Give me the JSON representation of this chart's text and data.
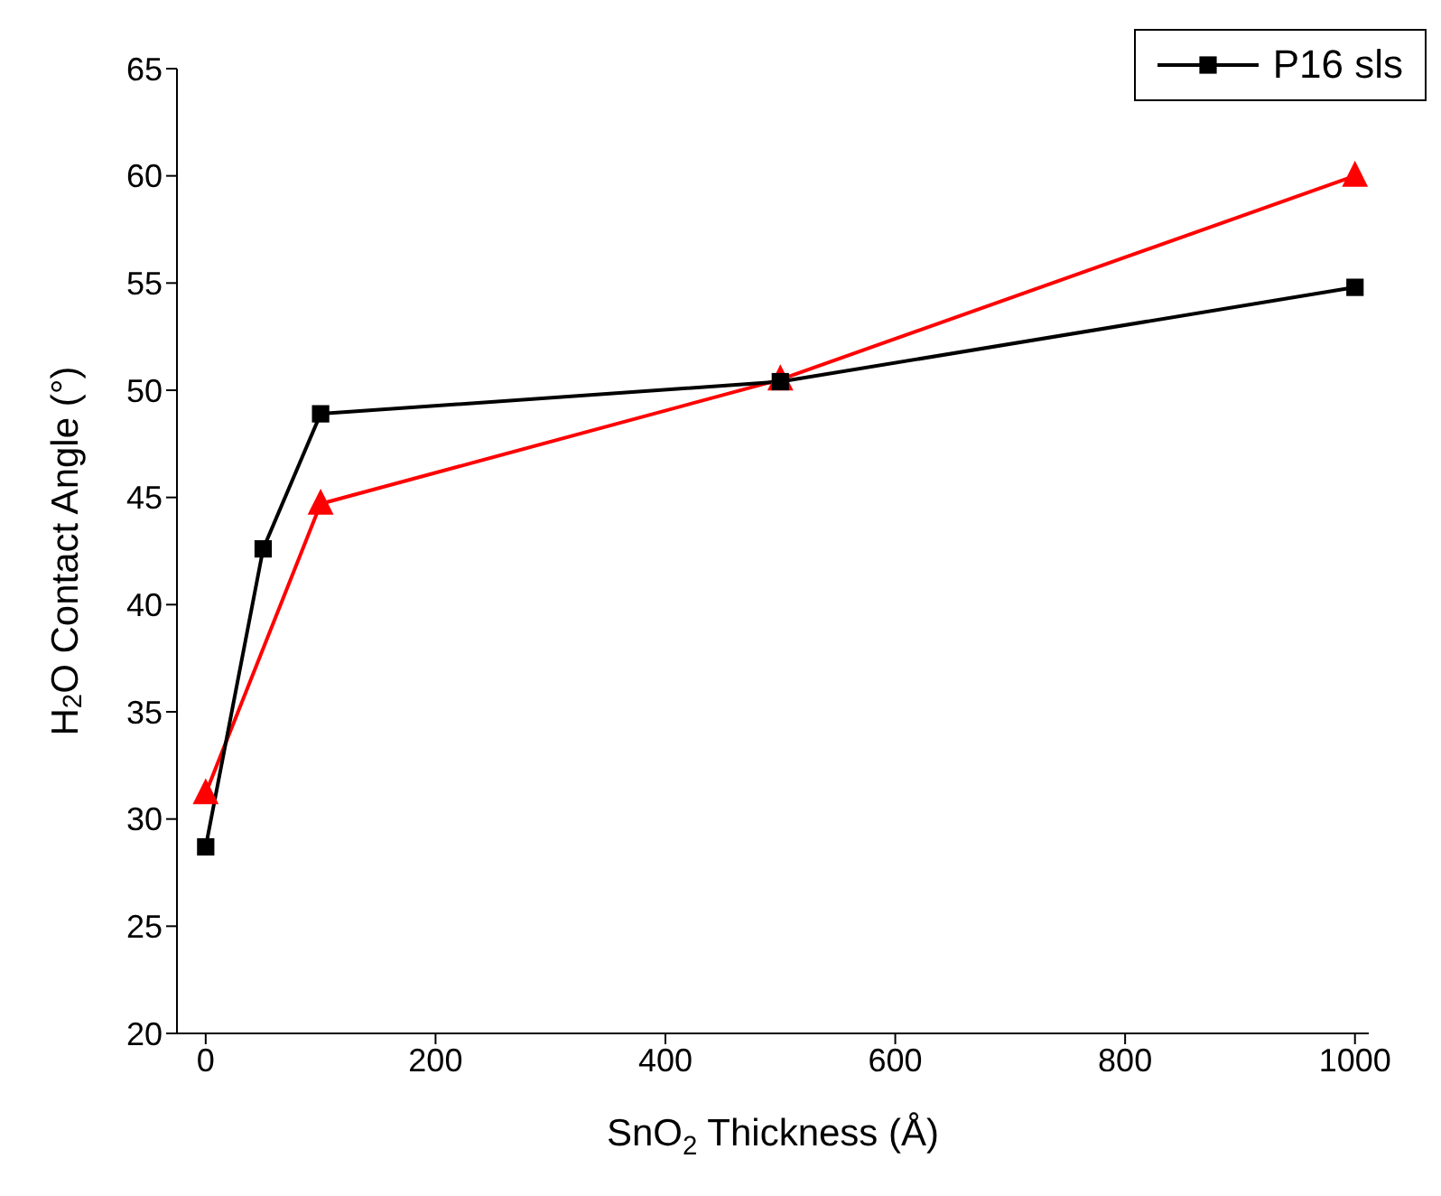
{
  "chart_data": {
    "type": "line",
    "xlabel": "SnO$_{2}$ Thickness (Å)",
    "ylabel": "H$_{2}$O Contact Angle (°)",
    "xlim": [
      -25,
      1012
    ],
    "xticks": [
      0,
      200,
      400,
      600,
      800,
      1000
    ],
    "ylim": [
      20,
      65
    ],
    "yticks": [
      20,
      25,
      30,
      35,
      40,
      45,
      50,
      55,
      60,
      65
    ],
    "legend": "top right",
    "series": [
      {
        "color": "#ff0000",
        "marker": "triangle",
        "x": [
          0,
          100,
          500,
          1000
        ],
        "values": [
          31.2,
          44.7,
          50.5,
          60
        ]
      },
      {
        "name": "P16 sls",
        "color": "#000000",
        "marker": "square",
        "x": [
          0,
          50,
          100,
          500,
          1000
        ],
        "values": [
          28.7,
          42.6,
          48.9,
          50.4,
          54.8
        ]
      }
    ]
  }
}
